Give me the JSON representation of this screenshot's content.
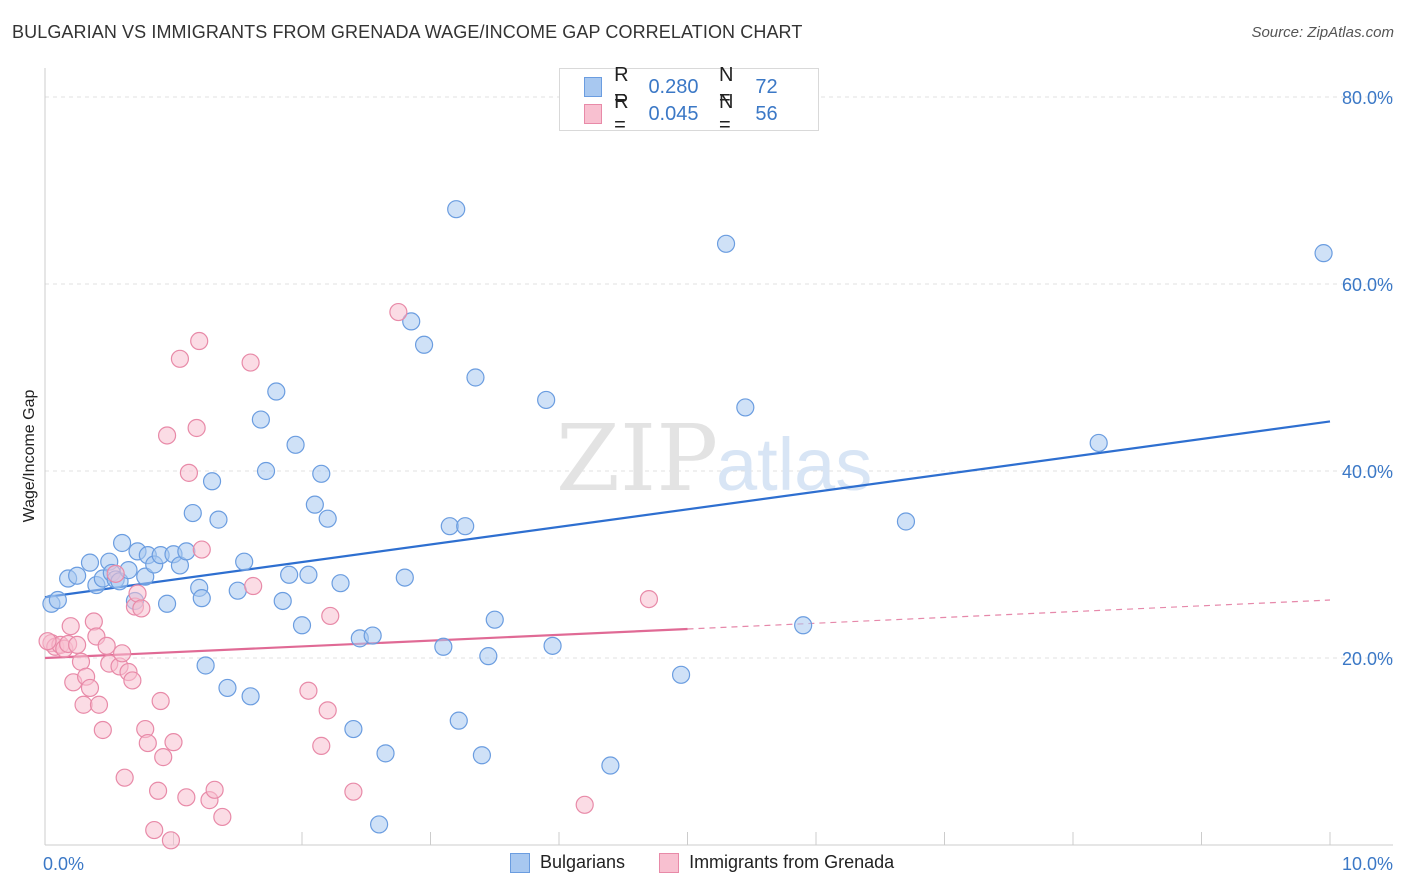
{
  "header": {
    "title": "BULGARIAN VS IMMIGRANTS FROM GRENADA WAGE/INCOME GAP CORRELATION CHART",
    "source": "Source: ZipAtlas.com"
  },
  "watermark": {
    "zip": "ZIP",
    "atlas": "atlas"
  },
  "legend": {
    "rows": [
      {
        "r_label": "R =",
        "r_value": "0.280",
        "n_label": "N =",
        "n_value": "72",
        "color": "#a8c8f0",
        "border": "#6b9de0"
      },
      {
        "r_label": "R =",
        "r_value": "0.045",
        "n_label": "N =",
        "n_value": "56",
        "color": "#f8c0d0",
        "border": "#e88aa8"
      }
    ]
  },
  "bottom_legend": {
    "items": [
      {
        "label": "Bulgarians",
        "color": "#a8c8f0",
        "border": "#6b9de0"
      },
      {
        "label": "Immigrants from Grenada",
        "color": "#f8c0d0",
        "border": "#e88aa8"
      }
    ]
  },
  "chart_data": {
    "type": "scatter",
    "title": "BULGARIAN VS IMMIGRANTS FROM GRENADA WAGE/INCOME GAP CORRELATION CHART",
    "xlabel": "",
    "ylabel": "Wage/Income Gap",
    "xlim": [
      0,
      10
    ],
    "ylim": [
      0,
      80
    ],
    "x_ticks": [
      "0.0%",
      "10.0%"
    ],
    "y_ticks": [
      {
        "value": 20,
        "label": "20.0%"
      },
      {
        "value": 40,
        "label": "40.0%"
      },
      {
        "value": 60,
        "label": "60.0%"
      },
      {
        "value": 80,
        "label": "80.0%"
      }
    ],
    "grid": true,
    "legend_position": "top-center",
    "series": [
      {
        "name": "Bulgarians",
        "color": "#6b9de0",
        "fill": "#a8c8f0",
        "trend": {
          "x": [
            0,
            10
          ],
          "y": [
            26.5,
            45.3
          ],
          "style": "solid",
          "color": "#2e6fd0"
        },
        "points": [
          [
            0.05,
            25.8
          ],
          [
            0.1,
            26.2
          ],
          [
            0.18,
            28.5
          ],
          [
            0.25,
            28.8
          ],
          [
            0.35,
            30.2
          ],
          [
            0.4,
            27.8
          ],
          [
            0.45,
            28.5
          ],
          [
            0.5,
            30.3
          ],
          [
            0.52,
            29.1
          ],
          [
            0.55,
            28.4
          ],
          [
            0.58,
            28.2
          ],
          [
            0.6,
            32.3
          ],
          [
            0.65,
            29.4
          ],
          [
            0.7,
            26.1
          ],
          [
            0.72,
            31.4
          ],
          [
            0.78,
            28.7
          ],
          [
            0.8,
            31.0
          ],
          [
            0.85,
            30.0
          ],
          [
            0.9,
            31.0
          ],
          [
            0.95,
            25.8
          ],
          [
            1.0,
            31.1
          ],
          [
            1.05,
            29.9
          ],
          [
            1.1,
            31.4
          ],
          [
            1.15,
            35.5
          ],
          [
            1.2,
            27.5
          ],
          [
            1.22,
            26.4
          ],
          [
            1.25,
            19.2
          ],
          [
            1.3,
            38.9
          ],
          [
            1.35,
            34.8
          ],
          [
            1.42,
            16.8
          ],
          [
            1.5,
            27.2
          ],
          [
            1.55,
            30.3
          ],
          [
            1.6,
            15.9
          ],
          [
            1.68,
            45.5
          ],
          [
            1.72,
            40.0
          ],
          [
            1.8,
            48.5
          ],
          [
            1.85,
            26.1
          ],
          [
            1.9,
            28.9
          ],
          [
            1.95,
            42.8
          ],
          [
            2.0,
            23.5
          ],
          [
            2.05,
            28.9
          ],
          [
            2.1,
            36.4
          ],
          [
            2.15,
            39.7
          ],
          [
            2.2,
            34.9
          ],
          [
            2.3,
            28.0
          ],
          [
            2.4,
            12.4
          ],
          [
            2.45,
            22.1
          ],
          [
            2.55,
            22.4
          ],
          [
            2.6,
            2.2
          ],
          [
            2.65,
            9.8
          ],
          [
            2.8,
            28.6
          ],
          [
            2.85,
            56.0
          ],
          [
            2.95,
            53.5
          ],
          [
            3.1,
            21.2
          ],
          [
            3.15,
            34.1
          ],
          [
            3.2,
            68.0
          ],
          [
            3.22,
            13.3
          ],
          [
            3.27,
            34.1
          ],
          [
            3.35,
            50.0
          ],
          [
            3.4,
            9.6
          ],
          [
            3.45,
            20.2
          ],
          [
            3.5,
            24.1
          ],
          [
            3.9,
            47.6
          ],
          [
            3.95,
            21.3
          ],
          [
            4.4,
            8.5
          ],
          [
            4.95,
            18.2
          ],
          [
            5.3,
            64.3
          ],
          [
            5.45,
            46.8
          ],
          [
            5.9,
            23.5
          ],
          [
            6.7,
            34.6
          ],
          [
            8.2,
            43.0
          ],
          [
            9.95,
            63.3
          ]
        ]
      },
      {
        "name": "Immigrants from Grenada",
        "color": "#e88aa8",
        "fill": "#f8c0d0",
        "trend": {
          "x": [
            0,
            5
          ],
          "y": [
            20.0,
            23.1
          ],
          "style": "solid",
          "color": "#e06a95",
          "extension": {
            "x": [
              5,
              10
            ],
            "y": [
              23.1,
              26.2
            ],
            "style": "dashed"
          }
        },
        "points": [
          [
            0.05,
            21.6
          ],
          [
            0.08,
            21.2
          ],
          [
            0.12,
            21.4
          ],
          [
            0.15,
            21.0
          ],
          [
            0.18,
            21.5
          ],
          [
            0.2,
            23.4
          ],
          [
            0.22,
            17.4
          ],
          [
            0.25,
            21.4
          ],
          [
            0.28,
            19.6
          ],
          [
            0.3,
            15.0
          ],
          [
            0.32,
            18.0
          ],
          [
            0.35,
            16.8
          ],
          [
            0.38,
            23.9
          ],
          [
            0.4,
            22.3
          ],
          [
            0.42,
            15.0
          ],
          [
            0.45,
            12.3
          ],
          [
            0.48,
            21.3
          ],
          [
            0.5,
            19.4
          ],
          [
            0.55,
            29.0
          ],
          [
            0.58,
            19.1
          ],
          [
            0.6,
            20.5
          ],
          [
            0.62,
            7.2
          ],
          [
            0.65,
            18.5
          ],
          [
            0.68,
            17.6
          ],
          [
            0.7,
            25.5
          ],
          [
            0.72,
            26.9
          ],
          [
            0.75,
            25.3
          ],
          [
            0.78,
            12.4
          ],
          [
            0.8,
            10.9
          ],
          [
            0.85,
            1.6
          ],
          [
            0.88,
            5.8
          ],
          [
            0.9,
            15.4
          ],
          [
            0.92,
            9.4
          ],
          [
            0.95,
            43.8
          ],
          [
            0.98,
            0.5
          ],
          [
            1.0,
            11.0
          ],
          [
            1.05,
            52.0
          ],
          [
            1.1,
            5.1
          ],
          [
            1.12,
            39.8
          ],
          [
            1.18,
            44.6
          ],
          [
            1.2,
            53.9
          ],
          [
            1.22,
            31.6
          ],
          [
            1.28,
            4.8
          ],
          [
            1.32,
            5.9
          ],
          [
            1.38,
            3.0
          ],
          [
            1.6,
            51.6
          ],
          [
            1.62,
            27.7
          ],
          [
            2.05,
            16.5
          ],
          [
            2.15,
            10.6
          ],
          [
            2.2,
            14.4
          ],
          [
            2.22,
            24.5
          ],
          [
            2.4,
            5.7
          ],
          [
            2.75,
            57.0
          ],
          [
            4.2,
            4.3
          ],
          [
            4.7,
            26.3
          ],
          [
            0.02,
            21.8
          ]
        ]
      }
    ]
  }
}
